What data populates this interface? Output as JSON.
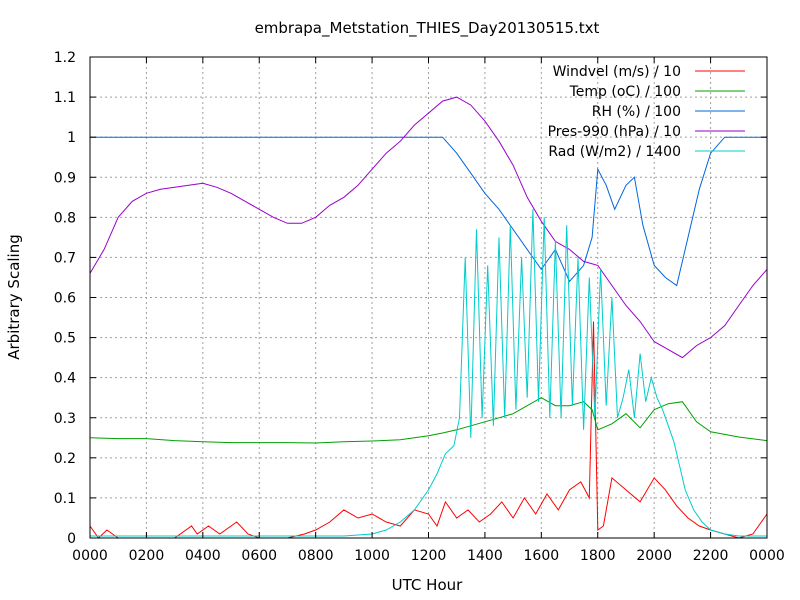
{
  "chart_data": {
    "type": "line",
    "title": "embrapa_Metstation_THIES_Day20130515.txt",
    "xlabel": "UTC Hour",
    "ylabel": "Arbitrary Scaling",
    "xlim": [
      0,
      24
    ],
    "ylim": [
      0,
      1.2
    ],
    "grid": true,
    "legend_position": "top-right",
    "x_ticks": [
      {
        "value": 0,
        "label": "0000"
      },
      {
        "value": 2,
        "label": "0200"
      },
      {
        "value": 4,
        "label": "0400"
      },
      {
        "value": 6,
        "label": "0600"
      },
      {
        "value": 8,
        "label": "0800"
      },
      {
        "value": 10,
        "label": "1000"
      },
      {
        "value": 12,
        "label": "1200"
      },
      {
        "value": 14,
        "label": "1400"
      },
      {
        "value": 16,
        "label": "1600"
      },
      {
        "value": 18,
        "label": "1800"
      },
      {
        "value": 20,
        "label": "2000"
      },
      {
        "value": 22,
        "label": "2200"
      },
      {
        "value": 24,
        "label": "0000"
      }
    ],
    "y_ticks": [
      {
        "value": 0,
        "label": "0"
      },
      {
        "value": 0.1,
        "label": "0.1"
      },
      {
        "value": 0.2,
        "label": "0.2"
      },
      {
        "value": 0.3,
        "label": "0.3"
      },
      {
        "value": 0.4,
        "label": "0.4"
      },
      {
        "value": 0.5,
        "label": "0.5"
      },
      {
        "value": 0.6,
        "label": "0.6"
      },
      {
        "value": 0.7,
        "label": "0.7"
      },
      {
        "value": 0.8,
        "label": "0.8"
      },
      {
        "value": 0.9,
        "label": "0.9"
      },
      {
        "value": 1.0,
        "label": "1"
      },
      {
        "value": 1.1,
        "label": "1.1"
      },
      {
        "value": 1.2,
        "label": "1.2"
      }
    ],
    "series": [
      {
        "name": "Windvel (m/s) / 10",
        "color": "#ff0000",
        "x": [
          0,
          0.3,
          0.6,
          1,
          2,
          3,
          3.6,
          3.8,
          4.2,
          4.6,
          5.2,
          5.6,
          6,
          6.4,
          7,
          7.6,
          8,
          8.5,
          9,
          9.5,
          10,
          10.5,
          11,
          11.5,
          12,
          12.3,
          12.6,
          13,
          13.4,
          13.8,
          14.2,
          14.6,
          15,
          15.4,
          15.8,
          16.2,
          16.6,
          17,
          17.4,
          17.7,
          17.85,
          18,
          18.2,
          18.5,
          19,
          19.5,
          20,
          20.4,
          20.8,
          21.2,
          21.6,
          22,
          22.5,
          23,
          23.5,
          24
        ],
        "y": [
          0.03,
          0.0,
          0.02,
          0.0,
          0.0,
          0.0,
          0.03,
          0.01,
          0.03,
          0.01,
          0.04,
          0.01,
          0.0,
          0.0,
          0.0,
          0.01,
          0.02,
          0.04,
          0.07,
          0.05,
          0.06,
          0.04,
          0.03,
          0.07,
          0.06,
          0.03,
          0.09,
          0.05,
          0.07,
          0.04,
          0.06,
          0.09,
          0.05,
          0.1,
          0.06,
          0.11,
          0.07,
          0.12,
          0.14,
          0.1,
          0.54,
          0.02,
          0.03,
          0.15,
          0.12,
          0.09,
          0.15,
          0.12,
          0.08,
          0.05,
          0.03,
          0.02,
          0.01,
          0.0,
          0.01,
          0.06
        ]
      },
      {
        "name": "Temp (oC) / 100",
        "color": "#00a000",
        "x": [
          0,
          1,
          2,
          3,
          4,
          5,
          6,
          7,
          8,
          9,
          10,
          11,
          12,
          12.5,
          13,
          13.5,
          14,
          14.5,
          15,
          15.5,
          16,
          16.5,
          17,
          17.5,
          17.8,
          18,
          18.5,
          19,
          19.5,
          20,
          20.5,
          21,
          21.5,
          22,
          23,
          24
        ],
        "y": [
          0.25,
          0.248,
          0.248,
          0.243,
          0.24,
          0.238,
          0.238,
          0.238,
          0.237,
          0.24,
          0.242,
          0.245,
          0.255,
          0.262,
          0.27,
          0.28,
          0.29,
          0.3,
          0.31,
          0.33,
          0.35,
          0.33,
          0.33,
          0.34,
          0.32,
          0.27,
          0.285,
          0.31,
          0.275,
          0.32,
          0.335,
          0.34,
          0.29,
          0.265,
          0.252,
          0.243
        ]
      },
      {
        "name": "RH (%) / 100",
        "color": "#0066dd",
        "x": [
          0,
          12.5,
          13,
          13.5,
          14,
          14.5,
          15,
          15.5,
          16,
          16.5,
          17,
          17.5,
          17.8,
          18,
          18.3,
          18.6,
          19,
          19.3,
          19.6,
          20,
          20.4,
          20.8,
          21.2,
          21.6,
          22,
          22.5,
          23,
          24
        ],
        "y": [
          1.0,
          1.0,
          0.96,
          0.91,
          0.86,
          0.82,
          0.77,
          0.72,
          0.67,
          0.72,
          0.64,
          0.68,
          0.75,
          0.92,
          0.88,
          0.82,
          0.88,
          0.9,
          0.78,
          0.68,
          0.65,
          0.63,
          0.75,
          0.87,
          0.96,
          1.0,
          1.0,
          1.0
        ]
      },
      {
        "name": "Pres-990 (hPa) / 10",
        "color": "#9900cc",
        "x": [
          0,
          0.5,
          1,
          1.5,
          2,
          2.5,
          3,
          3.5,
          4,
          4.5,
          5,
          5.5,
          6,
          6.5,
          7,
          7.5,
          8,
          8.5,
          9,
          9.5,
          10,
          10.5,
          11,
          11.5,
          12,
          12.5,
          13,
          13.5,
          14,
          14.5,
          15,
          15.5,
          16,
          16.5,
          17,
          17.5,
          18,
          18.5,
          19,
          19.5,
          20,
          20.5,
          21,
          21.5,
          22,
          22.5,
          23,
          23.5,
          24
        ],
        "y": [
          0.66,
          0.72,
          0.8,
          0.84,
          0.86,
          0.87,
          0.875,
          0.88,
          0.885,
          0.875,
          0.86,
          0.84,
          0.82,
          0.8,
          0.785,
          0.785,
          0.8,
          0.83,
          0.85,
          0.88,
          0.92,
          0.96,
          0.99,
          1.03,
          1.06,
          1.09,
          1.1,
          1.08,
          1.04,
          0.99,
          0.93,
          0.85,
          0.79,
          0.74,
          0.72,
          0.69,
          0.68,
          0.63,
          0.58,
          0.54,
          0.49,
          0.47,
          0.45,
          0.48,
          0.5,
          0.53,
          0.58,
          0.63,
          0.67
        ]
      },
      {
        "name": "Rad (W/m2) / 1400",
        "color": "#00cccc",
        "x": [
          0,
          1,
          2,
          3,
          4,
          5,
          6,
          7,
          8,
          9,
          10,
          10.5,
          11,
          11.5,
          12,
          12.3,
          12.6,
          12.9,
          13.1,
          13.3,
          13.5,
          13.7,
          13.9,
          14.1,
          14.3,
          14.5,
          14.7,
          14.9,
          15.1,
          15.3,
          15.5,
          15.7,
          15.9,
          16.1,
          16.3,
          16.5,
          16.7,
          16.9,
          17.1,
          17.3,
          17.5,
          17.7,
          17.9,
          18.1,
          18.3,
          18.5,
          18.7,
          18.9,
          19.1,
          19.3,
          19.5,
          19.7,
          19.9,
          20.1,
          20.3,
          20.5,
          20.7,
          20.9,
          21.1,
          21.4,
          21.7,
          22,
          22.5,
          23,
          24
        ],
        "y": [
          0.005,
          0.005,
          0.005,
          0.005,
          0.005,
          0.005,
          0.005,
          0.005,
          0.005,
          0.005,
          0.01,
          0.02,
          0.04,
          0.07,
          0.12,
          0.16,
          0.21,
          0.23,
          0.3,
          0.7,
          0.25,
          0.77,
          0.3,
          0.68,
          0.28,
          0.75,
          0.3,
          0.78,
          0.32,
          0.7,
          0.35,
          0.82,
          0.34,
          0.8,
          0.3,
          0.74,
          0.3,
          0.78,
          0.33,
          0.7,
          0.27,
          0.65,
          0.3,
          0.67,
          0.33,
          0.6,
          0.3,
          0.35,
          0.42,
          0.3,
          0.46,
          0.34,
          0.4,
          0.35,
          0.32,
          0.28,
          0.24,
          0.18,
          0.12,
          0.07,
          0.04,
          0.02,
          0.01,
          0.005,
          0.005
        ]
      }
    ]
  }
}
